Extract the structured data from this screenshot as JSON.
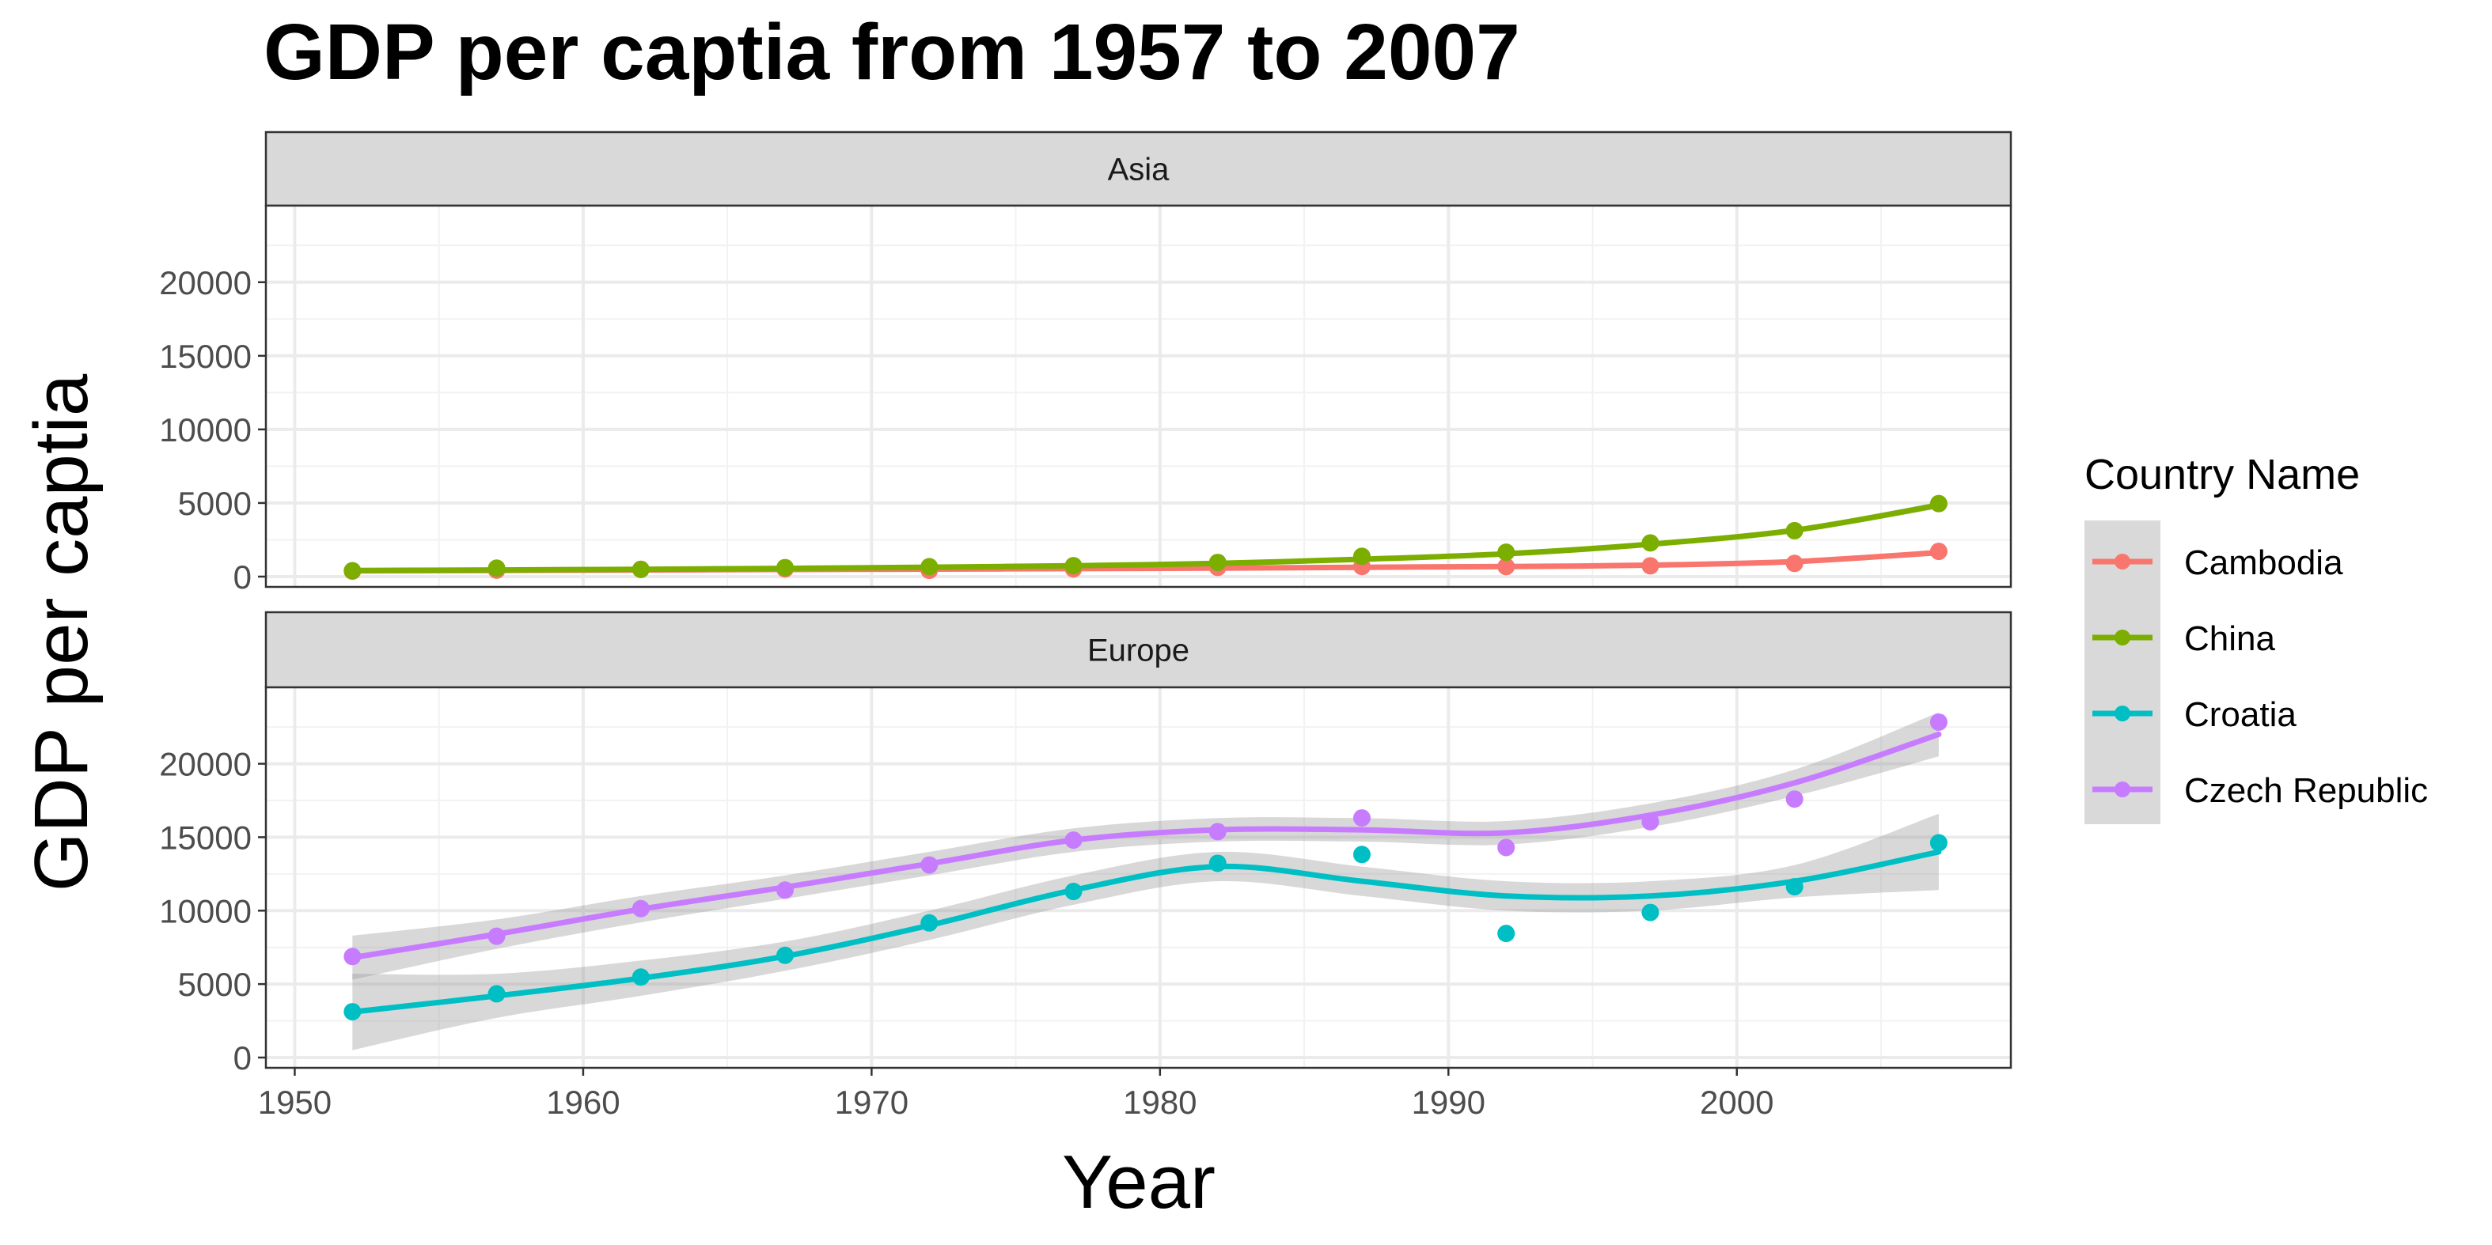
{
  "chart_data": {
    "type": "line",
    "title": "GDP per captia from 1957 to 2007",
    "xlabel": "Year",
    "ylabel": "GDP per captia",
    "xlim": [
      1949,
      2009.5
    ],
    "ylim": [
      -700,
      25200
    ],
    "x_ticks": [
      1950,
      1960,
      1970,
      1980,
      1990,
      2000
    ],
    "y_ticks": [
      0,
      5000,
      10000,
      15000,
      20000
    ],
    "grid": true,
    "legend_title": "Country Name",
    "legend_position": "right",
    "smoothing_band": true,
    "x": [
      1952,
      1957,
      1962,
      1967,
      1972,
      1977,
      1982,
      1987,
      1992,
      1997,
      2002,
      2007
    ],
    "panels": [
      {
        "facet": "Asia",
        "series": [
          {
            "name": "Cambodia",
            "color": "#F8766D",
            "points": [
              368,
              434,
              497,
              523,
              422,
              525,
              625,
              684,
              682,
              734,
              896,
              1713
            ],
            "trend": [
              390,
              420,
              450,
              480,
              510,
              540,
              580,
              630,
              680,
              780,
              1020,
              1630
            ],
            "band": [
              130,
              110,
              100,
              100,
              100,
              100,
              100,
              100,
              110,
              120,
              140,
              200
            ]
          },
          {
            "name": "China",
            "color": "#7CAE00",
            "points": [
              400,
              576,
              488,
              613,
              677,
              741,
              962,
              1379,
              1656,
              2289,
              3119,
              4959
            ],
            "trend": [
              420,
              450,
              500,
              560,
              640,
              740,
              900,
              1180,
              1550,
              2200,
              3150,
              4850
            ],
            "band": [
              150,
              120,
              110,
              110,
              110,
              110,
              110,
              120,
              130,
              140,
              170,
              230
            ]
          }
        ]
      },
      {
        "facet": "Europe",
        "series": [
          {
            "name": "Croatia",
            "color": "#00BFC4",
            "points": [
              3119,
              4338,
              5478,
              6960,
              9164,
              11305,
              13222,
              13823,
              8448,
              9876,
              11628,
              14619
            ],
            "trend": [
              3100,
              4200,
              5400,
              6900,
              9000,
              11400,
              13000,
              12000,
              11000,
              11000,
              12000,
              14000
            ],
            "band": [
              2600,
              1500,
              1200,
              1000,
              1000,
              1000,
              1000,
              1000,
              1000,
              1000,
              1100,
              2600
            ]
          },
          {
            "name": "Czech Republic",
            "color": "#C77CFF",
            "points": [
              6876,
              8256,
              10137,
              11399,
              13108,
              14800,
              15377,
              16310,
              14298,
              16049,
              17596,
              22833
            ],
            "trend": [
              6800,
              8400,
              10100,
              11600,
              13200,
              14800,
              15500,
              15500,
              15300,
              16500,
              18700,
              22000
            ],
            "band": [
              1500,
              1000,
              900,
              800,
              800,
              800,
              800,
              800,
              800,
              800,
              900,
              1500
            ]
          }
        ]
      }
    ]
  }
}
